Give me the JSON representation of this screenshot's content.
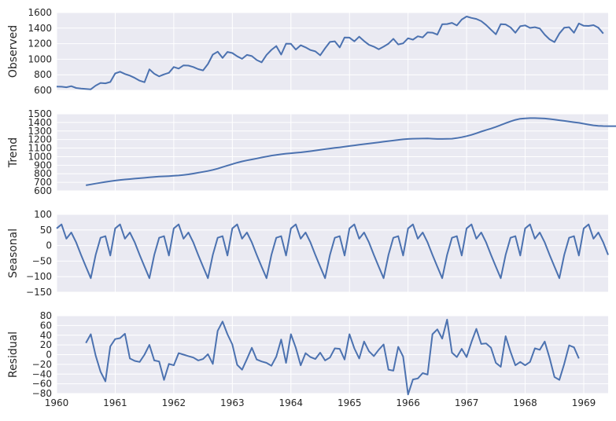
{
  "chart_data": {
    "type": "line",
    "x_axis": {
      "ticks": [
        1960,
        1961,
        1962,
        1963,
        1964,
        1965,
        1966,
        1967,
        1968,
        1969
      ],
      "tick_labels": [
        "1960",
        "1961",
        "1962",
        "1963",
        "1964",
        "1965",
        "1966",
        "1967",
        "1968",
        "1969"
      ],
      "xlim": [
        1960,
        1969.4167
      ]
    },
    "grid": true,
    "line_color": "#4c72b0",
    "background_color": "#eaeaf2",
    "panels": [
      {
        "ylabel": "Observed",
        "ylim": [
          600,
          1600
        ],
        "yticks": [
          600,
          800,
          1000,
          1200,
          1400,
          1600
        ],
        "ytick_labels": [
          "600",
          "800",
          "1000",
          "1200",
          "1400",
          "1600"
        ],
        "x_start": 1960,
        "values": [
          648,
          646,
          639,
          654,
          630,
          622,
          617,
          613,
          661,
          695,
          690,
          707,
          817,
          839,
          810,
          789,
          760,
          724,
          704,
          870,
          813,
          780,
          805,
          825,
          900,
          880,
          921,
          918,
          900,
          873,
          857,
          938,
          1060,
          1097,
          1017,
          1094,
          1080,
          1037,
          1005,
          1056,
          1040,
          990,
          960,
          1056,
          1120,
          1170,
          1060,
          1200,
          1198,
          1124,
          1180,
          1153,
          1118,
          1101,
          1050,
          1140,
          1222,
          1230,
          1152,
          1280,
          1278,
          1230,
          1290,
          1233,
          1185,
          1162,
          1128,
          1162,
          1200,
          1263,
          1190,
          1204,
          1270,
          1252,
          1295,
          1281,
          1345,
          1341,
          1316,
          1449,
          1453,
          1468,
          1434,
          1510,
          1550,
          1531,
          1518,
          1490,
          1440,
          1380,
          1320,
          1452,
          1447,
          1410,
          1340,
          1424,
          1435,
          1403,
          1412,
          1395,
          1316,
          1256,
          1220,
          1330,
          1405,
          1412,
          1340,
          1460,
          1430,
          1428,
          1438,
          1405,
          1330
        ]
      },
      {
        "ylabel": "Trend",
        "ylim": [
          600,
          1500
        ],
        "yticks": [
          600,
          700,
          800,
          900,
          1000,
          1100,
          1200,
          1300,
          1400,
          1500
        ],
        "ytick_labels": [
          "600",
          "700",
          "800",
          "900",
          "1000",
          "1100",
          "1200",
          "1300",
          "1400",
          "1500"
        ],
        "x_start": 1960.5,
        "values": [
          665,
          675,
          685,
          695,
          705,
          712,
          720,
          728,
          733,
          738,
          743,
          748,
          752,
          758,
          763,
          767,
          770,
          773,
          776,
          780,
          786,
          793,
          802,
          812,
          822,
          832,
          845,
          860,
          878,
          896,
          913,
          930,
          944,
          956,
          967,
          978,
          990,
          1001,
          1012,
          1020,
          1028,
          1035,
          1040,
          1045,
          1050,
          1056,
          1064,
          1072,
          1080,
          1088,
          1095,
          1102,
          1109,
          1116,
          1124,
          1132,
          1139,
          1146,
          1153,
          1160,
          1168,
          1175,
          1182,
          1189,
          1196,
          1202,
          1207,
          1210,
          1211,
          1212,
          1213,
          1210,
          1207,
          1207,
          1208,
          1210,
          1217,
          1227,
          1240,
          1255,
          1273,
          1293,
          1311,
          1328,
          1348,
          1370,
          1392,
          1412,
          1430,
          1443,
          1448,
          1450,
          1450,
          1449,
          1446,
          1440,
          1434,
          1426,
          1418,
          1410,
          1403,
          1395,
          1385,
          1375,
          1366,
          1360,
          1358,
          1357,
          1357,
          1357,
          1357,
          1357,
          1357,
          1357,
          1357,
          1357
        ]
      },
      {
        "ylabel": "Seasonal",
        "ylim": [
          -150,
          100
        ],
        "yticks": [
          -150,
          -100,
          -50,
          0,
          50,
          100
        ],
        "ytick_labels": [
          "−150",
          "−100",
          "−50",
          "0",
          "50",
          "100"
        ],
        "x_start": 1960,
        "pattern_period": 12,
        "pattern": [
          55,
          68,
          22,
          42,
          10,
          -30,
          -68,
          -105,
          -30,
          25,
          30,
          -32
        ]
      },
      {
        "ylabel": "Residual",
        "ylim": [
          -80,
          80
        ],
        "yticks": [
          -80,
          -60,
          -40,
          -20,
          0,
          20,
          40,
          60,
          80
        ],
        "ytick_labels": [
          "−80",
          "−60",
          "−40",
          "−20",
          "0",
          "20",
          "40",
          "60",
          "80"
        ],
        "x_start": 1960.5,
        "values": [
          24,
          42,
          -2,
          -35,
          -55,
          17,
          32,
          34,
          43,
          -8,
          -13,
          -15,
          0,
          20,
          -12,
          -14,
          -52,
          -19,
          -22,
          3,
          0,
          -3,
          -6,
          -12,
          -9,
          1,
          -19,
          49,
          68,
          42,
          21,
          -21,
          -31,
          -9,
          14,
          -10,
          -14,
          -17,
          -23,
          -4,
          31,
          -17,
          42,
          14,
          -22,
          3,
          -5,
          -9,
          4,
          -12,
          -6,
          13,
          12,
          -10,
          42,
          13,
          -8,
          27,
          7,
          -3,
          10,
          21,
          -31,
          -33,
          16,
          -4,
          -82,
          -51,
          -49,
          -38,
          -41,
          42,
          52,
          33,
          72,
          4,
          -5,
          12,
          -5,
          26,
          53,
          22,
          23,
          14,
          -17,
          -25,
          38,
          6,
          -22,
          -15,
          -22,
          -15,
          13,
          10,
          27,
          -7,
          -46,
          -52,
          -19,
          19,
          15,
          -8
        ]
      }
    ]
  }
}
